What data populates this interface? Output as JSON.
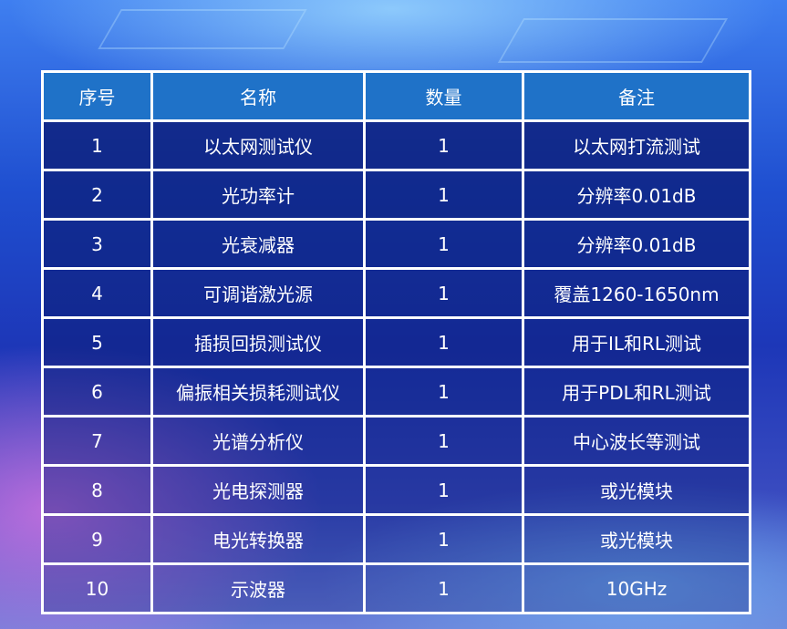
{
  "table": {
    "header": [
      "序号",
      "名称",
      "数量",
      "备注"
    ],
    "rows": [
      [
        "1",
        "以太网测试仪",
        "1",
        "以太网打流测试"
      ],
      [
        "2",
        "光功率计",
        "1",
        "分辨率0.01dB"
      ],
      [
        "3",
        "光衰减器",
        "1",
        "分辨率0.01dB"
      ],
      [
        "4",
        "可调谐激光源",
        "1",
        "覆盖1260-1650nm"
      ],
      [
        "5",
        "插损回损测试仪",
        "1",
        "用于IL和RL测试"
      ],
      [
        "6",
        "偏振相关损耗测试仪",
        "1",
        "用于PDL和RL测试"
      ],
      [
        "7",
        "光谱分析仪",
        "1",
        "中心波长等测试"
      ],
      [
        "8",
        "光电探测器",
        "1",
        "或光模块"
      ],
      [
        "9",
        "电光转换器",
        "1",
        "或光模块"
      ],
      [
        "10",
        "示波器",
        "1",
        "10GHz"
      ]
    ]
  }
}
